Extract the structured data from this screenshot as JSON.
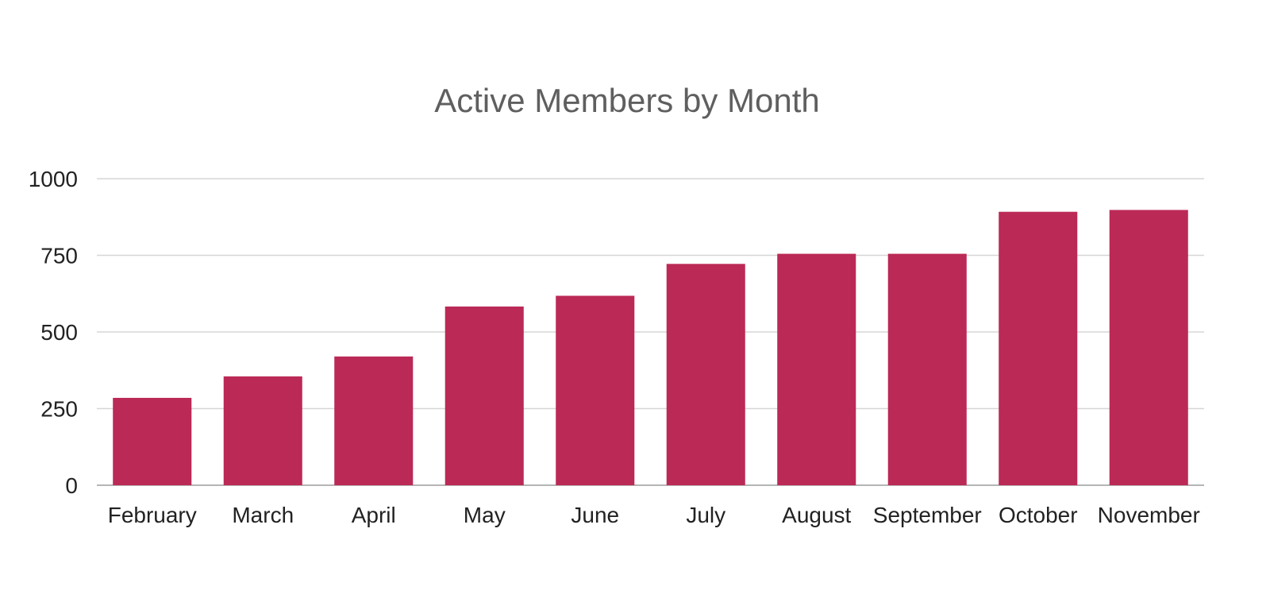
{
  "chart_data": {
    "type": "bar",
    "title": "Active Members by Month",
    "xlabel": "",
    "ylabel": "",
    "categories": [
      "February",
      "March",
      "April",
      "May",
      "June",
      "July",
      "August",
      "September",
      "October",
      "November"
    ],
    "values": [
      285,
      355,
      420,
      583,
      618,
      722,
      755,
      755,
      892,
      898
    ],
    "ylim": [
      0,
      1000
    ],
    "yticks": [
      0,
      250,
      500,
      750,
      1000
    ],
    "grid": true,
    "legend": "none",
    "colors": {
      "bar": "#bb2957",
      "grid": "#d6d6d6",
      "title": "#5f5f5f",
      "labels": "#222222"
    }
  }
}
